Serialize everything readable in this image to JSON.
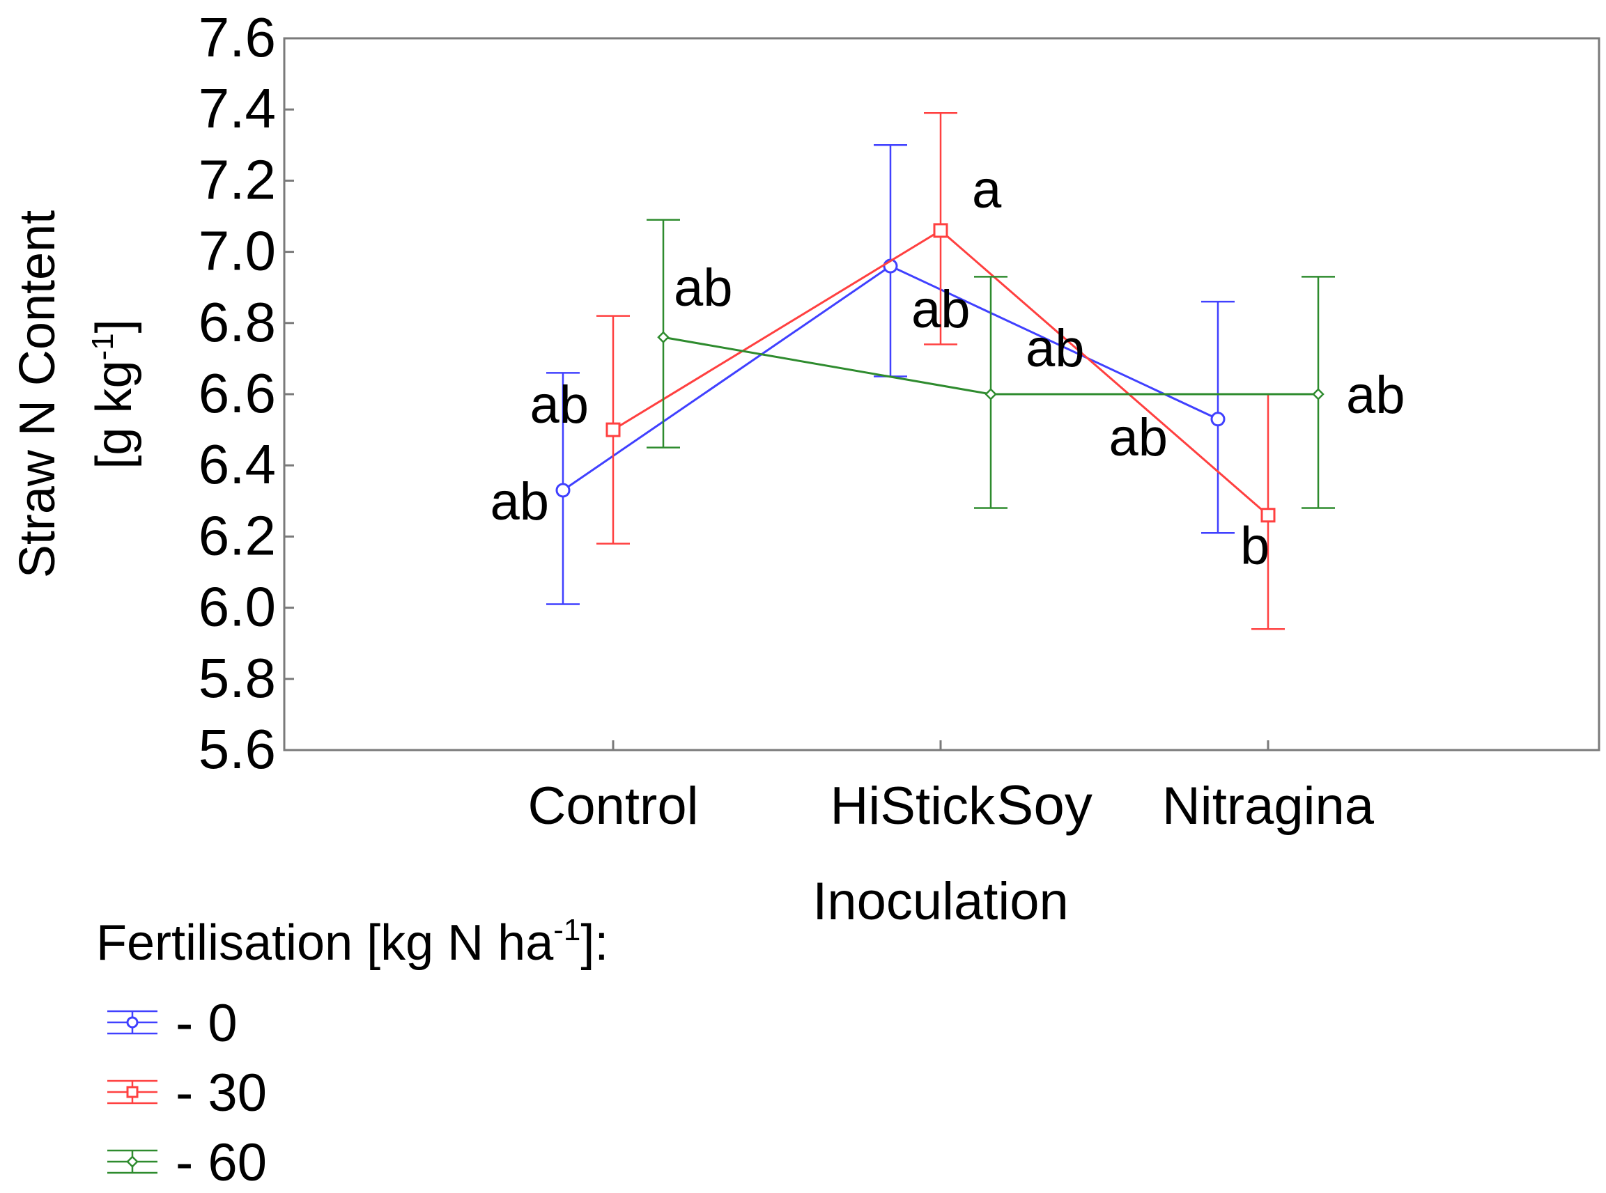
{
  "chart_data": {
    "type": "line",
    "xlabel": "Inoculation",
    "ylabel": {
      "line1": "Straw N Content",
      "line2_prefix": "[g kg",
      "line2_sup": "-1",
      "line2_suffix": "]"
    },
    "categories": [
      "Control",
      "HiStick",
      "Nitragina"
    ],
    "category_suffix": "Soy",
    "ylim": [
      5.6,
      7.6
    ],
    "yticks": [
      "5.6",
      "5.8",
      "6.0",
      "6.2",
      "6.4",
      "6.6",
      "6.8",
      "7.0",
      "7.2",
      "7.4",
      "7.6"
    ],
    "grid": false,
    "legend": {
      "title_prefix": "Fertilisation [kg N ha",
      "title_sup": "-1",
      "title_suffix": "]:",
      "placement": "bottom-left"
    },
    "series": [
      {
        "name": "- 0",
        "color": "#4040ff",
        "marker": "circle",
        "values": [
          6.33,
          6.96,
          6.53
        ],
        "err_low": [
          6.01,
          6.65,
          6.21
        ],
        "err_high": [
          6.66,
          7.3,
          6.86
        ],
        "labels": [
          "ab",
          "ab",
          "ab"
        ]
      },
      {
        "name": "- 30",
        "color": "#ff4040",
        "marker": "square",
        "values": [
          6.5,
          7.06,
          6.26
        ],
        "err_low": [
          6.18,
          6.74,
          5.94
        ],
        "err_high": [
          6.82,
          7.39,
          6.6
        ],
        "labels": [
          "ab",
          "a",
          "b"
        ]
      },
      {
        "name": "- 60",
        "color": "#2e8b2e",
        "marker": "diamond",
        "values": [
          6.76,
          6.6,
          6.6
        ],
        "err_low": [
          6.45,
          6.28,
          6.28
        ],
        "err_high": [
          7.09,
          6.93,
          6.93
        ],
        "labels": [
          "ab",
          "ab",
          "ab"
        ]
      }
    ]
  }
}
